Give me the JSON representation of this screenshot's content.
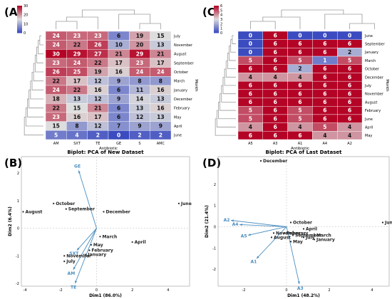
{
  "panels": {
    "A": "(A)",
    "B": "(B)",
    "C": "(C)",
    "D": "(D)"
  },
  "colors": {
    "heat_low": "#3b4cc0",
    "heat_mid": "#dddddd",
    "heat_high": "#b40426",
    "arrow": "#4a8ec0",
    "dendro": "#9a9a9a"
  },
  "chart_data": [
    {
      "panel": "A",
      "type": "heatmap",
      "xlabel": "Antibiotic",
      "ylabel": "Month",
      "colorbar": {
        "range": [
          0,
          30
        ],
        "ticks": [
          "30",
          "20",
          "10",
          "0"
        ]
      },
      "columns": [
        "AM",
        "SXT",
        "TE",
        "GE",
        "S",
        "AMC"
      ],
      "rows": [
        "July",
        "November",
        "August",
        "September",
        "October",
        "March",
        "January",
        "December",
        "February",
        "May",
        "April",
        "June"
      ],
      "values": [
        [
          24,
          23,
          23,
          6,
          19,
          15
        ],
        [
          24,
          22,
          26,
          10,
          20,
          13
        ],
        [
          30,
          29,
          27,
          21,
          29,
          21
        ],
        [
          23,
          24,
          22,
          17,
          23,
          17
        ],
        [
          26,
          25,
          19,
          16,
          24,
          24
        ],
        [
          22,
          17,
          12,
          9,
          8,
          8
        ],
        [
          24,
          22,
          16,
          6,
          11,
          16
        ],
        [
          18,
          13,
          12,
          9,
          14,
          13
        ],
        [
          22,
          15,
          21,
          6,
          13,
          16
        ],
        [
          23,
          16,
          17,
          6,
          12,
          13
        ],
        [
          15,
          8,
          12,
          7,
          9,
          9
        ],
        [
          5,
          4,
          2,
          0,
          2,
          2
        ]
      ]
    },
    {
      "panel": "C",
      "type": "heatmap",
      "xlabel": "Antibiotic",
      "ylabel": "Month",
      "colorbar": {
        "range": [
          0,
          6
        ],
        "ticks": [
          "6",
          "5",
          "4",
          "3",
          "2",
          "1",
          "0"
        ]
      },
      "columns": [
        "A5",
        "A3",
        "A1",
        "A4",
        "A2"
      ],
      "rows": [
        "June",
        "September",
        "January",
        "March",
        "October",
        "December",
        "July",
        "November",
        "August",
        "February",
        "June",
        "April",
        "May"
      ],
      "values": [
        [
          0,
          6,
          0,
          0,
          0
        ],
        [
          0,
          6,
          6,
          6,
          6
        ],
        [
          0,
          6,
          6,
          6,
          2
        ],
        [
          5,
          6,
          5,
          1,
          5
        ],
        [
          6,
          6,
          2,
          6,
          6
        ],
        [
          4,
          4,
          4,
          6,
          6
        ],
        [
          6,
          6,
          6,
          6,
          6
        ],
        [
          6,
          6,
          6,
          6,
          6
        ],
        [
          6,
          6,
          6,
          6,
          6
        ],
        [
          5,
          6,
          5,
          6,
          6
        ],
        [
          5,
          6,
          5,
          6,
          6
        ],
        [
          4,
          6,
          4,
          5,
          4
        ],
        [
          6,
          6,
          6,
          4,
          4
        ]
      ]
    },
    {
      "panel": "B",
      "type": "scatter",
      "title": "Biplot: PCA of New Dataset",
      "xlabel": "Dim1 (86.0%)",
      "ylabel": "Dim2 (6.4%)",
      "xlim": [
        -4.2,
        5.2
      ],
      "ylim": [
        -2.1,
        2.6
      ],
      "xticks": [
        "-4",
        "-2",
        "0",
        "2",
        "4"
      ],
      "yticks": [
        "2",
        "1",
        "0",
        "-1",
        "-2"
      ],
      "points": [
        {
          "label": "June",
          "x": 4.6,
          "y": 0.9
        },
        {
          "label": "August",
          "x": -4.1,
          "y": 0.6
        },
        {
          "label": "October",
          "x": -2.4,
          "y": 0.9
        },
        {
          "label": "September",
          "x": -1.7,
          "y": 0.7
        },
        {
          "label": "December",
          "x": 0.4,
          "y": 0.6
        },
        {
          "label": "March",
          "x": 0.2,
          "y": -0.3
        },
        {
          "label": "April",
          "x": 2.0,
          "y": -0.5
        },
        {
          "label": "May",
          "x": -0.3,
          "y": -0.6
        },
        {
          "label": "February",
          "x": -0.4,
          "y": -0.8
        },
        {
          "label": "January",
          "x": -0.6,
          "y": -0.95
        },
        {
          "label": "November",
          "x": -1.8,
          "y": -1.0
        },
        {
          "label": "July",
          "x": -1.8,
          "y": -1.2
        }
      ],
      "vectors": [
        {
          "label": "GE",
          "x": -1.0,
          "y": 2.1
        },
        {
          "label": "SXT",
          "x": -1.1,
          "y": -0.8
        },
        {
          "label": "AM",
          "x": -1.3,
          "y": -1.5
        },
        {
          "label": "TE",
          "x": -1.2,
          "y": -2.0
        }
      ]
    },
    {
      "panel": "D",
      "type": "scatter",
      "title": "Biplot: PCA of Last Dataset",
      "xlabel": "Dim1 (48.2%)",
      "ylabel": "Dim2 (21.4%)",
      "xlim": [
        -3.2,
        4.8
      ],
      "ylim": [
        -2.8,
        3.3
      ],
      "xticks": [
        "-2",
        "0",
        "2",
        "4"
      ],
      "yticks": [
        "3",
        "2",
        "1",
        "0",
        "-1",
        "-2"
      ],
      "points": [
        {
          "label": "December",
          "x": -1.2,
          "y": 3.1
        },
        {
          "label": "June",
          "x": 4.5,
          "y": 0.2
        },
        {
          "label": "October",
          "x": 0.2,
          "y": 0.2
        },
        {
          "label": "April",
          "x": 0.8,
          "y": -0.1
        },
        {
          "label": "February",
          "x": -0.1,
          "y": -0.3
        },
        {
          "label": "November",
          "x": -0.6,
          "y": -0.3
        },
        {
          "label": "September",
          "x": 0.3,
          "y": -0.4
        },
        {
          "label": "March",
          "x": 1.3,
          "y": -0.4
        },
        {
          "label": "July",
          "x": 0.8,
          "y": -0.5
        },
        {
          "label": "August",
          "x": -0.7,
          "y": -0.5
        },
        {
          "label": "January",
          "x": 1.3,
          "y": -0.6
        },
        {
          "label": "May",
          "x": 0.2,
          "y": -0.7
        }
      ],
      "vectors": [
        {
          "label": "A2",
          "x": -2.6,
          "y": 0.3
        },
        {
          "label": "A4",
          "x": -2.2,
          "y": 0.1
        },
        {
          "label": "A5",
          "x": -1.8,
          "y": -0.4
        },
        {
          "label": "A1",
          "x": -1.4,
          "y": -1.5
        },
        {
          "label": "A3",
          "x": 0.6,
          "y": -2.7
        }
      ]
    }
  ]
}
